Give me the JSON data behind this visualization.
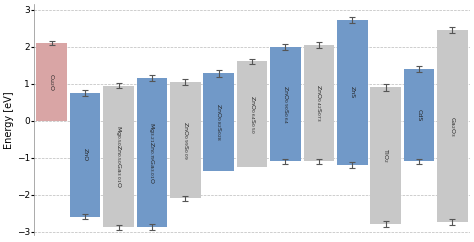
{
  "categories": [
    "Cu$_2$O",
    "ZnO",
    "Mg$_{0.50}$Zn$_{0.50}$Ga$_{3.01}$O",
    "Mg$_{3.21}$Zn$_{0.79}$Ga$_{3.01}$O",
    "ZnO$_{0.99}$S$_{0.09}$",
    "ZnO$_{0.82}$S$_{0.28}$",
    "ZnO$_{0.64}$S$_{0.50}$",
    "ZnO$_{0.90}$S$_{0.64}$",
    "ZnO$_{0.42}$S$_{0.73}$",
    "ZnS",
    "TiO$_2$",
    "CdS",
    "Ga$_2$O$_3$"
  ],
  "bar_bottoms": [
    0.0,
    -2.6,
    -2.88,
    -2.88,
    -2.1,
    -1.35,
    -1.25,
    -1.1,
    -1.1,
    -1.2,
    -2.8,
    -1.1,
    -2.75
  ],
  "bar_tops": [
    2.1,
    0.75,
    0.95,
    1.15,
    1.05,
    1.28,
    1.6,
    2.0,
    2.05,
    2.72,
    0.9,
    1.4,
    2.45
  ],
  "top_errors": [
    0.06,
    0.07,
    0.07,
    0.09,
    0.08,
    0.09,
    0.08,
    0.08,
    0.09,
    0.08,
    0.09,
    0.09,
    0.09
  ],
  "bot_errors": [
    0.0,
    0.07,
    0.07,
    0.08,
    0.07,
    0.0,
    0.0,
    0.07,
    0.07,
    0.08,
    0.08,
    0.07,
    0.08
  ],
  "bar_colors": [
    "#d9a5a5",
    "#7199c8",
    "#c8c8c8",
    "#7199c8",
    "#c8c8c8",
    "#7199c8",
    "#c8c8c8",
    "#7199c8",
    "#c8c8c8",
    "#7199c8",
    "#c8c8c8",
    "#7199c8",
    "#c8c8c8"
  ],
  "ylabel": "Energy [eV]",
  "ylim": [
    -3.1,
    3.15
  ],
  "yticks": [
    -3,
    -2,
    -1,
    0,
    1,
    2,
    3
  ],
  "grid_color": "#bbbbbb",
  "error_color": "#555555",
  "bar_width": 0.92,
  "label_fontsize": 4.5,
  "ylabel_fontsize": 7.0,
  "tick_fontsize": 6.5
}
